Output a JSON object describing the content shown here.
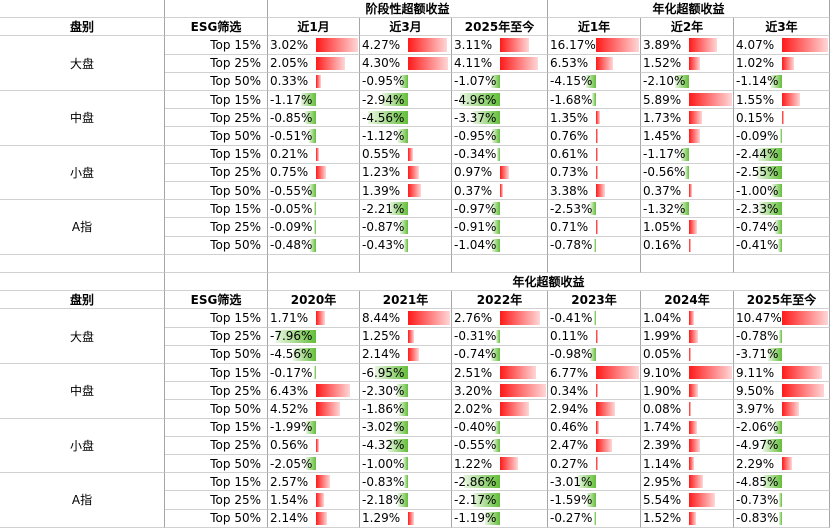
{
  "top_table": {
    "group_title_period": "阶段性超额收益",
    "group_title_annualized": "年化超额收益",
    "col_cap": "盘别",
    "col_esg": "ESG筛选",
    "period_cols": [
      "近1月",
      "近3月",
      "2025年至今"
    ],
    "annual_cols": [
      "近1年",
      "近2年",
      "近3年"
    ],
    "groups": [
      {
        "cap": "大盘",
        "rows": [
          {
            "esg": "Top 15%",
            "values": [
              "3.02%",
              "4.27%",
              "3.11%",
              "16.17%",
              "3.89%",
              "4.07%"
            ]
          },
          {
            "esg": "Top 25%",
            "values": [
              "2.05%",
              "4.30%",
              "4.11%",
              "6.53%",
              "1.52%",
              "1.02%"
            ]
          },
          {
            "esg": "Top 50%",
            "values": [
              "0.33%",
              "-0.95%",
              "-1.07%",
              "-4.15%",
              "-2.10%",
              "-1.14%"
            ]
          }
        ]
      },
      {
        "cap": "中盘",
        "rows": [
          {
            "esg": "Top 15%",
            "values": [
              "-1.17%",
              "-2.94%",
              "-4.96%",
              "-1.68%",
              "5.89%",
              "1.55%"
            ]
          },
          {
            "esg": "Top 25%",
            "values": [
              "-0.85%",
              "-4.56%",
              "-3.37%",
              "1.35%",
              "1.73%",
              "0.15%"
            ]
          },
          {
            "esg": "Top 50%",
            "values": [
              "-0.51%",
              "-1.12%",
              "-0.95%",
              "0.76%",
              "1.45%",
              "-0.09%"
            ]
          }
        ]
      },
      {
        "cap": "小盘",
        "rows": [
          {
            "esg": "Top 15%",
            "values": [
              "0.21%",
              "0.55%",
              "-0.34%",
              "0.61%",
              "-1.17%",
              "-2.44%"
            ]
          },
          {
            "esg": "Top 25%",
            "values": [
              "0.75%",
              "1.23%",
              "0.97%",
              "0.73%",
              "-0.56%",
              "-2.55%"
            ]
          },
          {
            "esg": "Top 50%",
            "values": [
              "-0.55%",
              "1.39%",
              "0.37%",
              "3.38%",
              "0.37%",
              "-1.00%"
            ]
          }
        ]
      },
      {
        "cap": "A指",
        "rows": [
          {
            "esg": "Top 15%",
            "values": [
              "-0.05%",
              "-2.21%",
              "-0.97%",
              "-2.53%",
              "-1.32%",
              "-2.33%"
            ]
          },
          {
            "esg": "Top 25%",
            "values": [
              "-0.09%",
              "-0.87%",
              "-0.91%",
              "0.71%",
              "1.05%",
              "-0.74%"
            ]
          },
          {
            "esg": "Top 50%",
            "values": [
              "-0.48%",
              "-0.43%",
              "-1.04%",
              "-0.78%",
              "0.16%",
              "-0.41%"
            ]
          }
        ]
      }
    ]
  },
  "bottom_table": {
    "group_title": "年化超额收益",
    "col_cap": "盘别",
    "col_esg": "ESG筛选",
    "year_cols": [
      "2020年",
      "2021年",
      "2022年",
      "2023年",
      "2024年",
      "2025年至今"
    ],
    "groups": [
      {
        "cap": "大盘",
        "rows": [
          {
            "esg": "Top 15%",
            "values": [
              "1.71%",
              "8.44%",
              "2.76%",
              "-0.41%",
              "1.04%",
              "10.47%"
            ]
          },
          {
            "esg": "Top 25%",
            "values": [
              "-7.96%",
              "1.25%",
              "-0.31%",
              "0.11%",
              "1.99%",
              "-0.78%"
            ]
          },
          {
            "esg": "Top 50%",
            "values": [
              "-4.56%",
              "2.14%",
              "-0.74%",
              "-0.98%",
              "0.05%",
              "-3.71%"
            ]
          }
        ]
      },
      {
        "cap": "中盘",
        "rows": [
          {
            "esg": "Top 15%",
            "values": [
              "-0.17%",
              "-6.95%",
              "2.51%",
              "6.77%",
              "9.10%",
              "9.11%"
            ]
          },
          {
            "esg": "Top 25%",
            "values": [
              "6.43%",
              "-2.30%",
              "3.20%",
              "0.34%",
              "1.90%",
              "9.50%"
            ]
          },
          {
            "esg": "Top 50%",
            "values": [
              "4.52%",
              "-1.86%",
              "2.02%",
              "2.94%",
              "0.08%",
              "3.97%"
            ]
          }
        ]
      },
      {
        "cap": "小盘",
        "rows": [
          {
            "esg": "Top 15%",
            "values": [
              "-1.99%",
              "-3.02%",
              "-0.40%",
              "0.46%",
              "1.74%",
              "-2.06%"
            ]
          },
          {
            "esg": "Top 25%",
            "values": [
              "0.56%",
              "-4.32%",
              "-0.55%",
              "2.47%",
              "2.39%",
              "-4.97%"
            ]
          },
          {
            "esg": "Top 50%",
            "values": [
              "-2.05%",
              "-1.00%",
              "1.22%",
              "0.27%",
              "1.14%",
              "2.29%"
            ]
          }
        ]
      },
      {
        "cap": "A指",
        "rows": [
          {
            "esg": "Top 15%",
            "values": [
              "2.57%",
              "-0.83%",
              "-2.86%",
              "-3.01%",
              "2.95%",
              "-4.85%"
            ]
          },
          {
            "esg": "Top 25%",
            "values": [
              "1.54%",
              "-2.18%",
              "-2.17%",
              "-1.59%",
              "5.54%",
              "-0.73%"
            ]
          },
          {
            "esg": "Top 50%",
            "values": [
              "2.14%",
              "1.29%",
              "-1.19%",
              "-0.27%",
              "1.52%",
              "-0.83%"
            ]
          }
        ]
      }
    ]
  },
  "colors": {
    "positive_bar": "#ff1a1a",
    "negative_bar": "#63be39",
    "grid": "#a6a6a6"
  }
}
